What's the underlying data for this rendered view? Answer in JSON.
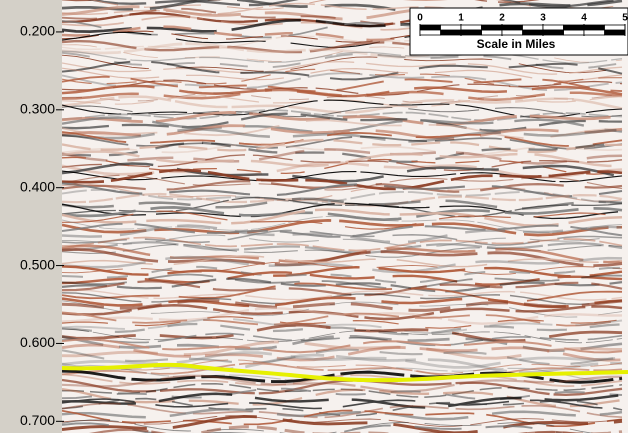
{
  "time_axis": {
    "lim": [
      0.159,
      0.715
    ],
    "ticks": [
      {
        "value": 0.2,
        "label": "0.200"
      },
      {
        "value": 0.3,
        "label": "0.300"
      },
      {
        "value": 0.4,
        "label": "0.400"
      },
      {
        "value": 0.5,
        "label": "0.500"
      },
      {
        "value": 0.6,
        "label": "0.600"
      },
      {
        "value": 0.7,
        "label": "0.700"
      }
    ]
  },
  "scale_bar": {
    "ticks": [
      0,
      1,
      2,
      3,
      4,
      5
    ],
    "label": "Scale in Miles"
  }
}
